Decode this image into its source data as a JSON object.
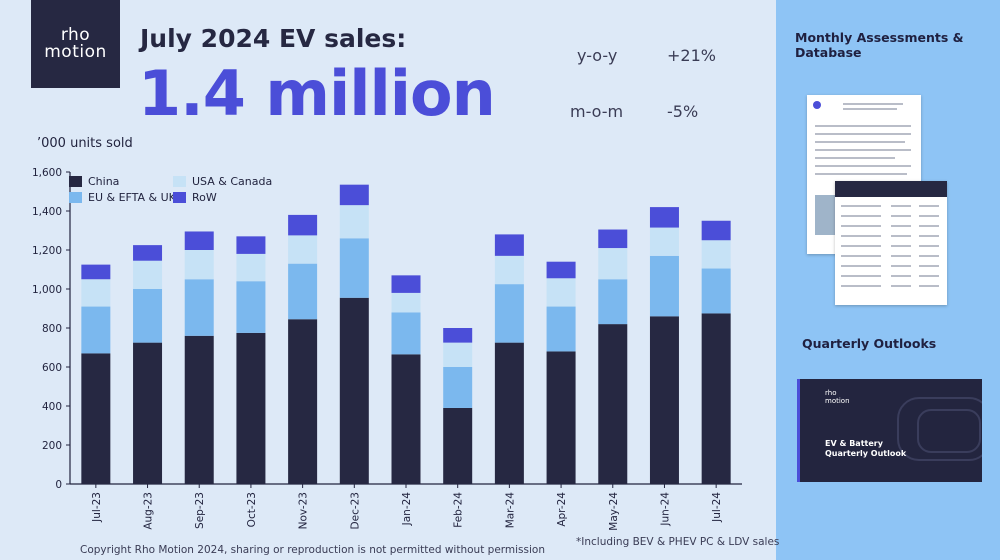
{
  "brand": {
    "logo_line1": "rho",
    "logo_line2": "motion"
  },
  "headline": "July 2024 EV sales:",
  "big_number": "1.4 million",
  "stats": [
    {
      "label": "y-o-y",
      "value": "+21%"
    },
    {
      "label": "m-o-m",
      "value": "-5%"
    }
  ],
  "units_label": "’000 units sold",
  "colors": {
    "china": "#262842",
    "eu_efta_uk": "#7bb8ee",
    "usa_canada": "#c6e2f6",
    "row": "#4b4ed8",
    "accent": "#4b4ed8",
    "side_panel": "#8ec4f5"
  },
  "chart_data": {
    "type": "bar",
    "stacked": true,
    "categories": [
      "Jul-23",
      "Aug-23",
      "Sep-23",
      "Oct-23",
      "Nov-23",
      "Dec-23",
      "Jan-24",
      "Feb-24",
      "Mar-24",
      "Apr-24",
      "May-24",
      "Jun-24",
      "Jul-24"
    ],
    "series": [
      {
        "name": "China",
        "values": [
          670,
          725,
          760,
          775,
          845,
          955,
          665,
          390,
          725,
          680,
          820,
          860,
          875
        ]
      },
      {
        "name": "EU & EFTA & UK",
        "values": [
          240,
          275,
          290,
          265,
          285,
          305,
          215,
          210,
          300,
          230,
          230,
          310,
          230
        ]
      },
      {
        "name": "USA & Canada",
        "values": [
          140,
          145,
          150,
          140,
          145,
          170,
          100,
          125,
          145,
          145,
          160,
          145,
          145
        ]
      },
      {
        "name": "RoW",
        "values": [
          75,
          80,
          95,
          90,
          105,
          105,
          90,
          75,
          110,
          85,
          95,
          105,
          100
        ]
      }
    ],
    "ylim": [
      0,
      1600
    ],
    "yticks": [
      0,
      200,
      400,
      600,
      800,
      1000,
      1200,
      1400,
      1600
    ],
    "ytick_labels": [
      "0",
      "200",
      "400",
      "600",
      "800",
      "1,000",
      "1,200",
      "1,400",
      "1,600"
    ],
    "legend_position": "top-left",
    "grid": false
  },
  "footer": {
    "copyright": "Copyright Rho Motion 2024, sharing or reproduction is not permitted without permission",
    "note": "*Including BEV & PHEV PC & LDV sales"
  },
  "sidebar": {
    "monthly_title": "Monthly Assessments & Database",
    "quarterly_title": "Quarterly Outlooks",
    "outlook_cover": {
      "logo_line1": "rho",
      "logo_line2": "motion",
      "title_line1": "EV & Battery",
      "title_line2": "Quarterly Outlook"
    }
  }
}
